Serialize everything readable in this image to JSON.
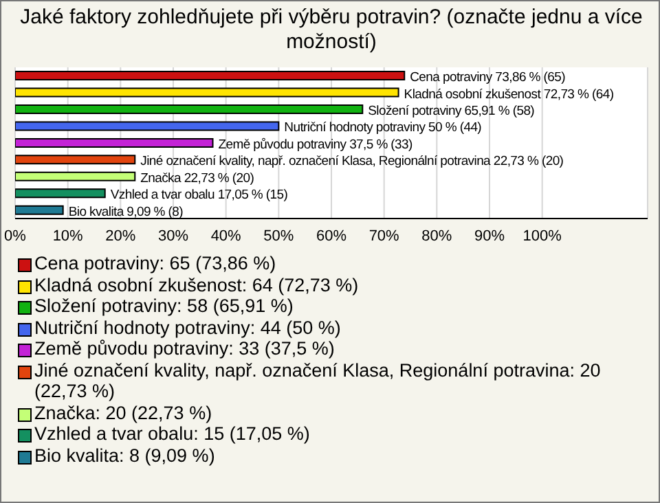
{
  "chart_data": {
    "type": "bar",
    "orientation": "horizontal",
    "title": "Jaké faktory zohledňujete při výběru potravin? (označte jednu a více možností)",
    "categories": [
      null,
      null,
      null,
      null,
      null,
      null,
      null,
      null,
      null
    ],
    "values": [
      73.86,
      72.73,
      65.91,
      50,
      37.5,
      22.73,
      22.73,
      17.05,
      9.09
    ],
    "colors": [
      "#cc1111",
      "#ffe400",
      "#11b211",
      "#4466ee",
      "#c322d6",
      "#e2440e",
      "#c4ff77",
      "#149060",
      "#1f7a94"
    ],
    "value_labels": [
      "Cena potraviny 73,86 % (65)",
      "Kladná osobní zkušenost 72,73 % (64)",
      "Složení potraviny 65,91 % (58)",
      "Nutriční hodnoty potraviny 50 % (44)",
      "Země původu potraviny 37,5 % (33)",
      "Jiné označení kvality, např. označení Klasa, Regionální potravina 22,73 % (20)",
      "Značka 22,73 % (20)",
      "Vzhled a tvar obalu 17,05 % (15)",
      "Bio kvalita 9,09 % (8)"
    ],
    "annotations": [
      "Cena potraviny: 65 (73,86 %)",
      "Kladná osobní zkušenost: 64 (72,73 %)",
      "Složení potraviny: 58 (65,91 %)",
      "Nutriční hodnoty potraviny: 44 (50 %)",
      "Země původu potraviny: 33 (37,5 %)",
      "Jiné označení kvality, např. označení Klasa, Regionální potravina: 20 (22,73 %)",
      "Značka: 20 (22,73 %)",
      "Vzhled a tvar obalu: 15 (17,05 %)",
      "Bio kvalita: 8 (9,09 %)"
    ],
    "xlim": [
      0,
      120
    ],
    "xticks": [
      {
        "value": 0,
        "label": "0%"
      },
      {
        "value": 10,
        "label": "10%"
      },
      {
        "value": 20,
        "label": "20%"
      },
      {
        "value": 30,
        "label": "30%"
      },
      {
        "value": 40,
        "label": "40%"
      },
      {
        "value": 50,
        "label": "50%"
      },
      {
        "value": 60,
        "label": "60%"
      },
      {
        "value": 70,
        "label": "70%"
      },
      {
        "value": 80,
        "label": "80%"
      },
      {
        "value": 90,
        "label": "90%"
      },
      {
        "value": 100,
        "label": "100%"
      }
    ],
    "tick_labels": "x",
    "grid": "x"
  }
}
